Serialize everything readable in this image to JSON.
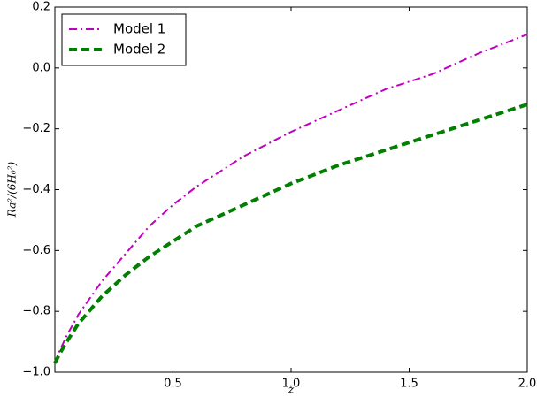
{
  "chart_data": {
    "type": "line",
    "x_label": "z",
    "y_label": "Ra²/(6H₀²)",
    "x": [
      0,
      0.02,
      0.05,
      0.1,
      0.2,
      0.3,
      0.4,
      0.5,
      0.6,
      0.8,
      1.0,
      1.2,
      1.4,
      1.6,
      1.8,
      2.0
    ],
    "series": [
      {
        "name": "Model 1",
        "color": "#bf00bf",
        "dash": "dashdot",
        "values": [
          -0.97,
          -0.93,
          -0.88,
          -0.81,
          -0.7,
          -0.61,
          -0.52,
          -0.45,
          -0.39,
          -0.29,
          -0.21,
          -0.14,
          -0.07,
          -0.02,
          0.05,
          0.11
        ]
      },
      {
        "name": "Model 2",
        "color": "#007f00",
        "dash": "dashed",
        "values": [
          -0.97,
          -0.94,
          -0.9,
          -0.84,
          -0.75,
          -0.68,
          -0.62,
          -0.57,
          -0.52,
          -0.45,
          -0.38,
          -0.32,
          -0.27,
          -0.22,
          -0.17,
          -0.12
        ]
      }
    ],
    "xlim": [
      0,
      2
    ],
    "ylim": [
      -1,
      0.2
    ],
    "xticks": [
      0.5,
      {
        "value": 1,
        "label": "1.0"
      },
      1.5,
      {
        "value": 2,
        "label": "2.0"
      }
    ],
    "yticks": [
      {
        "value": -1,
        "label": "−1.0"
      },
      {
        "value": -0.8,
        "label": "−0.8"
      },
      {
        "value": -0.6,
        "label": "−0.6"
      },
      {
        "value": -0.4,
        "label": "−0.4"
      },
      {
        "value": -0.2,
        "label": "−0.2"
      },
      {
        "value": 0,
        "label": "0.0"
      },
      0.2
    ],
    "grid": false,
    "legend": "upper-left"
  }
}
